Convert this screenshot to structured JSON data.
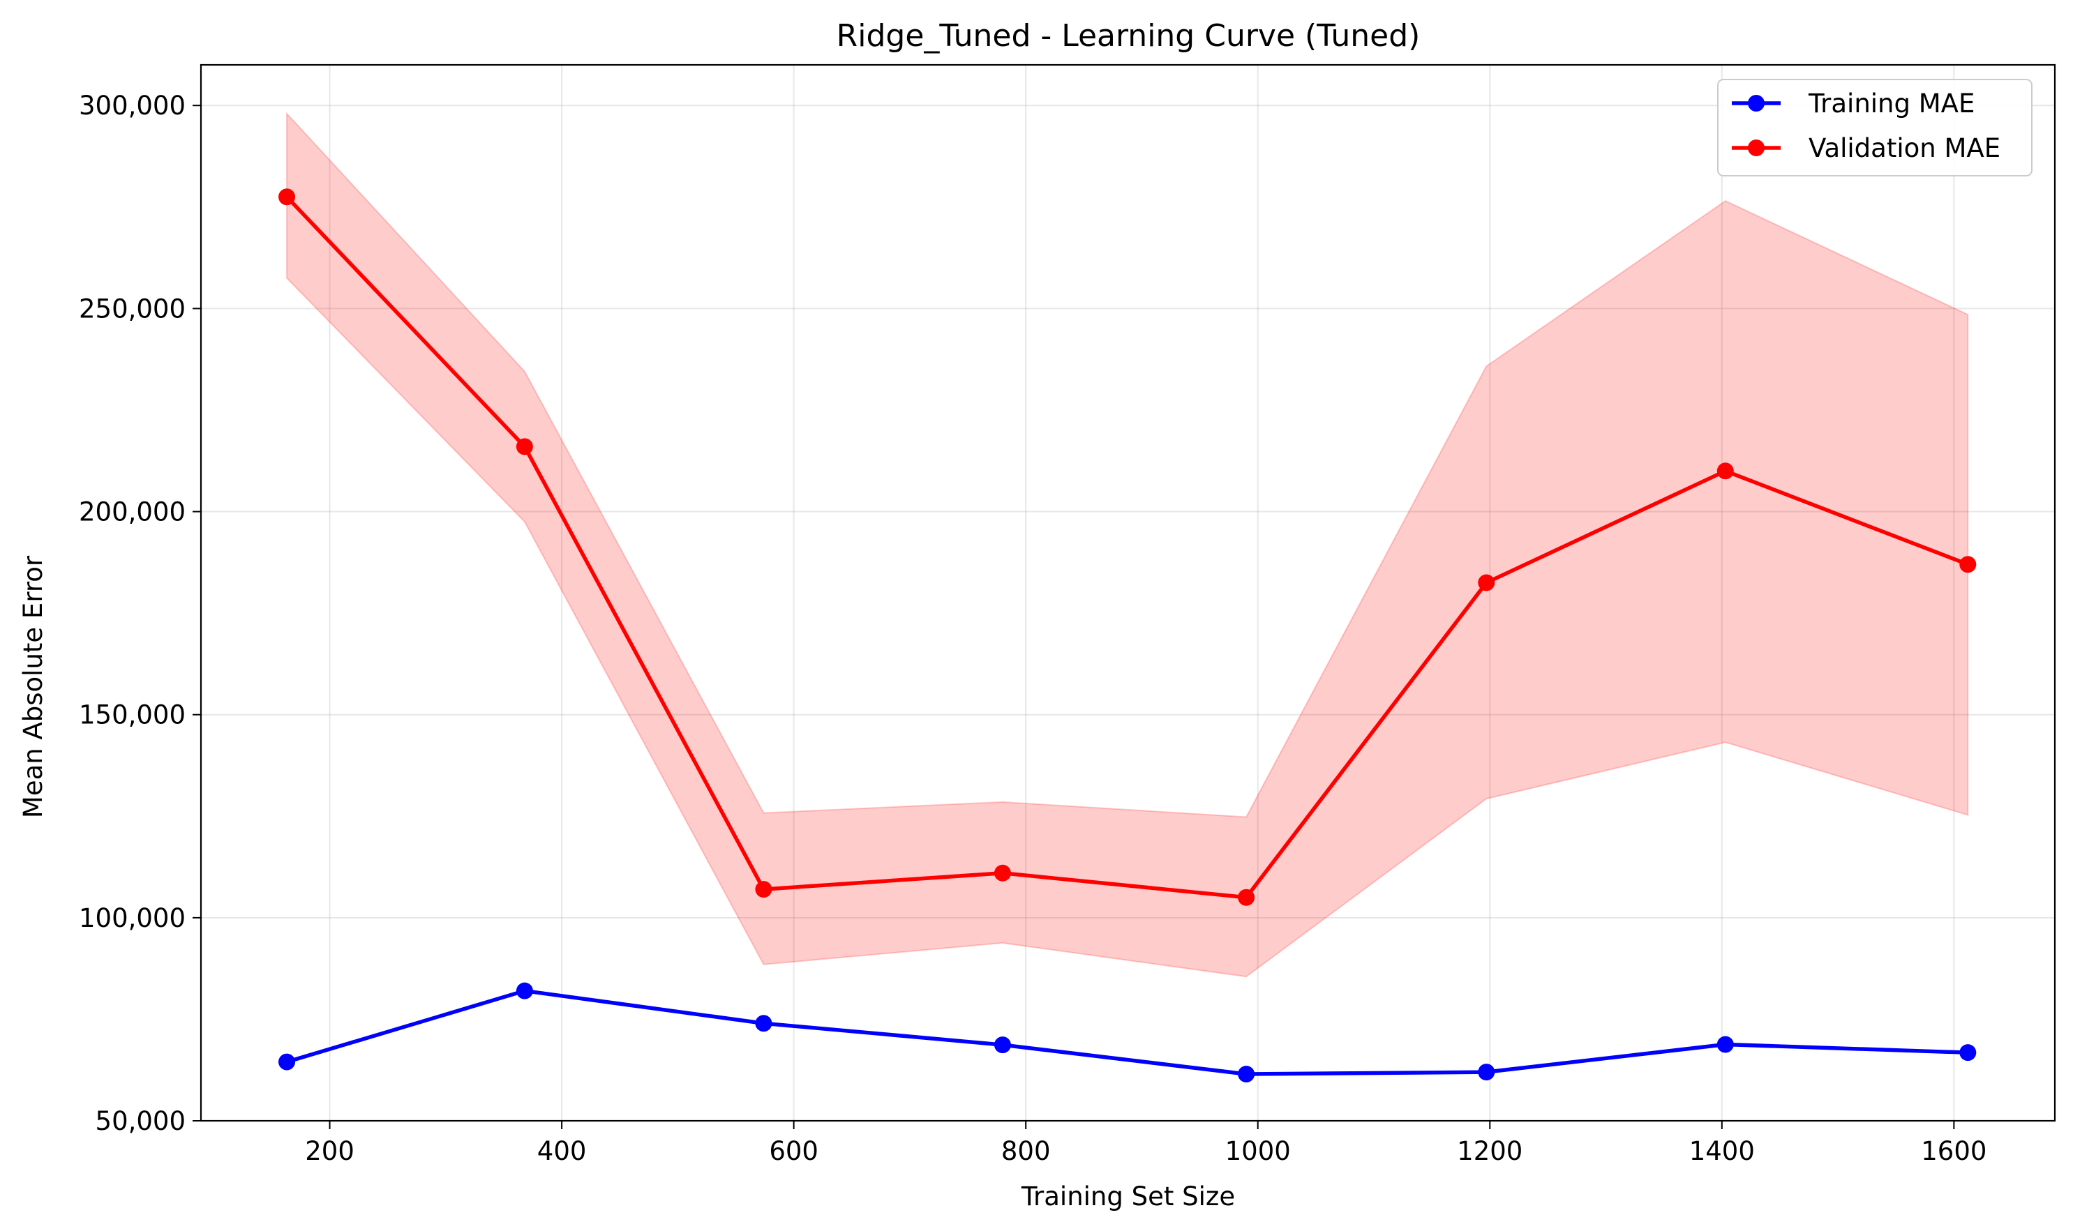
{
  "chart_data": {
    "type": "line",
    "title": "Ridge_Tuned - Learning Curve (Tuned)",
    "xlabel": "Training Set Size",
    "ylabel": "Mean Absolute Error",
    "xlim": [
      89,
      1687
    ],
    "ylim": [
      50000,
      310000
    ],
    "xticks": [
      200,
      400,
      600,
      800,
      1000,
      1200,
      1400,
      1600
    ],
    "xtick_labels": [
      "200",
      "400",
      "600",
      "800",
      "1000",
      "1200",
      "1400",
      "1600"
    ],
    "yticks": [
      50000,
      100000,
      150000,
      200000,
      250000,
      300000
    ],
    "ytick_labels": [
      "50,000",
      "100,000",
      "150,000",
      "200,000",
      "250,000",
      "300,000"
    ],
    "grid": true,
    "legend_position": "top-right",
    "x": [
      163,
      368,
      574,
      780,
      990,
      1197,
      1403,
      1612
    ],
    "series": [
      {
        "name": "Training MAE",
        "color": "#0000ff",
        "values": [
          64500,
          82000,
          74000,
          68700,
          61500,
          62000,
          68800,
          66800
        ]
      },
      {
        "name": "Validation MAE",
        "color": "#ff0000",
        "band_color": "#ff0000",
        "values": [
          277500,
          216000,
          107000,
          111000,
          105000,
          182500,
          210000,
          187000
        ],
        "band_upper": [
          298000,
          234500,
          125800,
          128500,
          124800,
          235800,
          276500,
          248500
        ],
        "band_lower": [
          257500,
          197500,
          88500,
          93800,
          85500,
          129300,
          143200,
          125300
        ]
      }
    ]
  }
}
